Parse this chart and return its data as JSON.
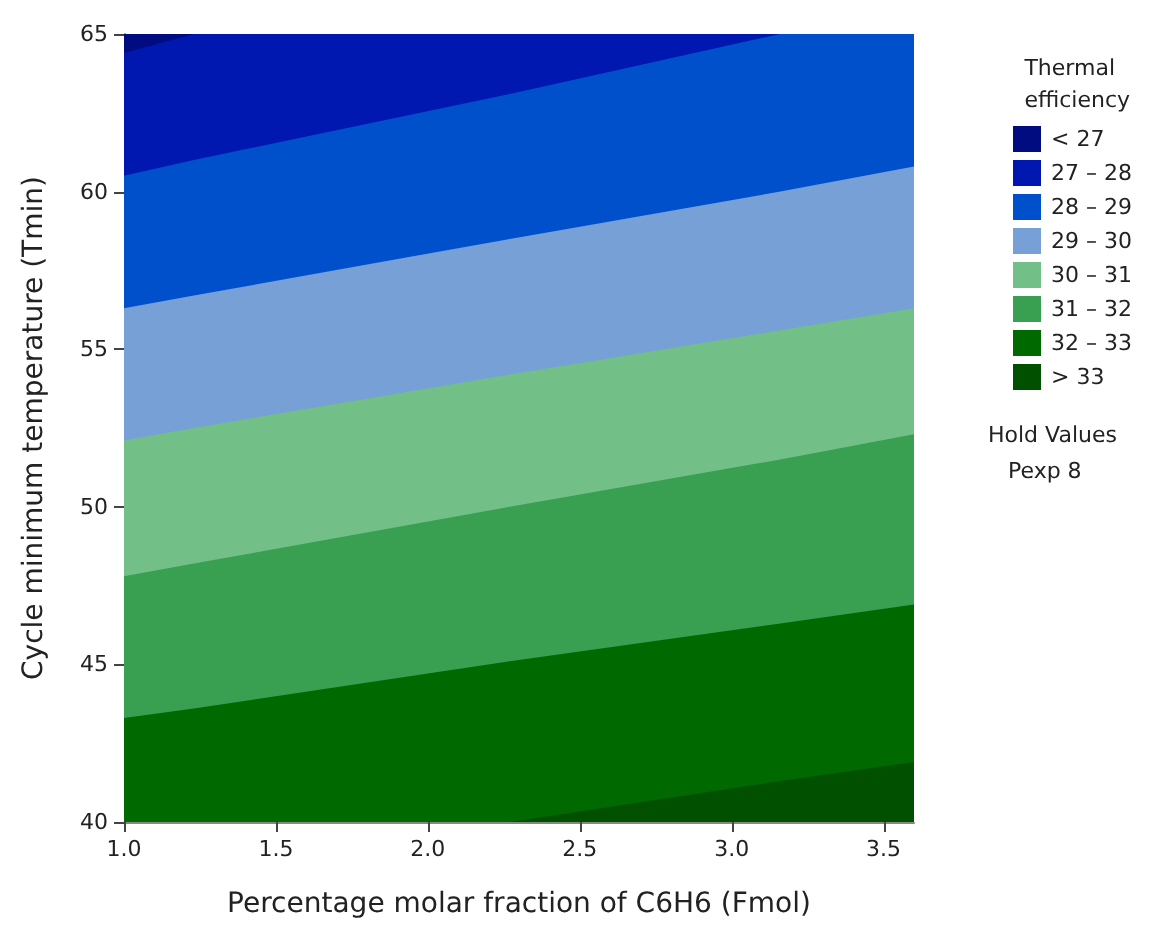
{
  "chart_data": {
    "type": "area",
    "xlabel": "Percentage molar fraction of C6H6 (Fmol)",
    "ylabel": "Cycle minimum temperature (Tmin)",
    "legend_title": "Thermal efficiency",
    "legend": "right",
    "x": [
      1.0,
      1.23,
      2.27,
      3.16,
      3.6
    ],
    "series": [
      {
        "name": "> 33",
        "color": "#005000",
        "values": [
          40,
          40,
          40,
          41.3,
          41.9
        ]
      },
      {
        "name": "32 – 33",
        "color": "#006a00",
        "values": [
          43.3,
          43.6,
          45.1,
          46.3,
          46.9
        ]
      },
      {
        "name": "31 – 32",
        "color": "#38a050",
        "values": [
          47.8,
          48.2,
          50.0,
          51.5,
          52.3
        ]
      },
      {
        "name": "30 – 31",
        "color": "#72c088",
        "values": [
          52.1,
          52.5,
          54.2,
          55.6,
          56.3
        ]
      },
      {
        "name": "29 – 30",
        "color": "#76a0d6",
        "values": [
          56.3,
          56.7,
          58.5,
          60.0,
          60.8
        ]
      },
      {
        "name": "28 – 29",
        "color": "#0050cc",
        "values": [
          60.5,
          61.0,
          63.1,
          65,
          65
        ]
      },
      {
        "name": "27 – 28",
        "color": "#0018b0",
        "values": [
          64.4,
          65,
          65,
          65,
          null
        ]
      },
      {
        "name": "< 27",
        "color": "#000c80",
        "values": [
          65,
          65,
          null,
          null,
          null
        ]
      }
    ],
    "xlim": [
      1.0,
      3.6
    ],
    "xticks": [
      {
        "value": 1.0,
        "label": "1.0"
      },
      {
        "value": 1.5,
        "label": "1.5"
      },
      {
        "value": 2.0,
        "label": "2.0"
      },
      {
        "value": 2.5,
        "label": "2.5"
      },
      {
        "value": 3.0,
        "label": "3.0"
      },
      {
        "value": 3.5,
        "label": "3.5"
      }
    ],
    "ylim": [
      40,
      65
    ],
    "yticks": [
      40,
      45,
      50,
      55,
      60,
      65
    ],
    "annotations": [
      "Hold Values",
      "Pexp 8"
    ]
  }
}
